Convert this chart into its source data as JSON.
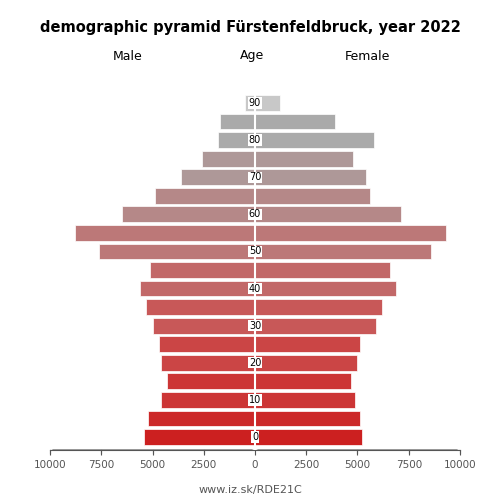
{
  "title": "demographic pyramid Fürstenfeldbruck, year 2022",
  "xlabel_left": "Male",
  "xlabel_right": "Female",
  "xlabel_center": "Age",
  "footer": "www.iz.sk/RDE21C",
  "age_groups": [
    0,
    5,
    10,
    15,
    20,
    25,
    30,
    35,
    40,
    45,
    50,
    55,
    60,
    65,
    70,
    75,
    80,
    85,
    90
  ],
  "male": [
    5400,
    5200,
    4600,
    4300,
    4600,
    4700,
    5000,
    5300,
    5600,
    5100,
    7600,
    8800,
    6500,
    4900,
    3600,
    2600,
    1800,
    1700,
    500
  ],
  "female": [
    5200,
    5100,
    4900,
    4700,
    5000,
    5100,
    5900,
    6200,
    6900,
    6600,
    8600,
    9300,
    7100,
    5600,
    5400,
    4800,
    5800,
    3900,
    1200
  ],
  "colors": [
    "#cc2020",
    "#cc2828",
    "#cc3535",
    "#cc3535",
    "#cb4545",
    "#cb4545",
    "#c85858",
    "#c85858",
    "#c26868",
    "#c26868",
    "#bc7878",
    "#bc7878",
    "#b58888",
    "#b58888",
    "#ae9898",
    "#ae9898",
    "#aaaaaa",
    "#aaaaaa",
    "#c8c8c8"
  ],
  "xlim": 10000,
  "bar_height": 0.85,
  "background_color": "#ffffff",
  "edge_color": "#ffffff"
}
